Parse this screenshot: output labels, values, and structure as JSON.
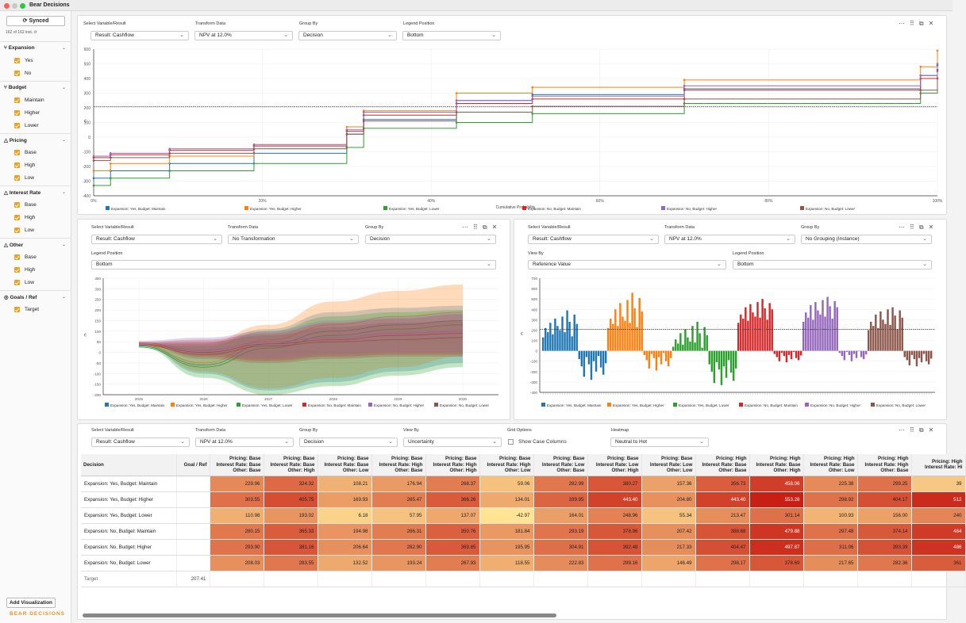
{
  "app": {
    "title": "Bear Decisions",
    "logo": "BEAR DECISIONS"
  },
  "sidebar": {
    "sync_label": "Synced",
    "instances": "162 of 162 inst.",
    "add_viz": "Add Visualization",
    "groups": [
      {
        "name": "Expansion",
        "icon": "branch-icon",
        "options": [
          "Yes",
          "No"
        ]
      },
      {
        "name": "Budget",
        "icon": "branch-icon",
        "options": [
          "Maintain",
          "Higher",
          "Lower"
        ]
      },
      {
        "name": "Pricing",
        "icon": "triangle-icon",
        "options": [
          "Base",
          "High",
          "Low"
        ]
      },
      {
        "name": "Interest Rate",
        "icon": "triangle-icon",
        "options": [
          "Base",
          "High",
          "Low"
        ]
      },
      {
        "name": "Other",
        "icon": "triangle-icon",
        "options": [
          "Base",
          "High",
          "Low"
        ]
      },
      {
        "name": "Goals / Ref",
        "icon": "target-icon",
        "options": [
          "Target"
        ]
      }
    ]
  },
  "colors": {
    "s1": "#1f77b4",
    "s2": "#ff7f0e",
    "s3": "#2ca02c",
    "s4": "#d62728",
    "s5": "#9467bd",
    "s6": "#8c564b",
    "accent": "#f0a020"
  },
  "legend": [
    "Expansion: Yes, Budget: Maintain",
    "Expansion: Yes, Budget: Higher",
    "Expansion: Yes, Budget: Lower",
    "Expansion: No, Budget: Maintain",
    "Expansion: No, Budget: Higher",
    "Expansion: No, Budget: Lower"
  ],
  "panel1": {
    "labels": {
      "variable": "Select Variable/Result",
      "transform": "Transform Data",
      "group": "Group By",
      "legend": "Legend Position"
    },
    "values": {
      "variable": "Result: Cashflow",
      "transform": "NPV at 12.0%",
      "group": "Decision",
      "legend": "Bottom"
    },
    "xlabel": "Cumulative Probability",
    "ylabel": "€"
  },
  "panel2": {
    "labels": {
      "variable": "Select Variable/Result",
      "transform": "Transform Data",
      "group": "Group By",
      "legend": "Legend Position"
    },
    "values": {
      "variable": "Result: Cashflow",
      "transform": "No Transformation",
      "group": "Decision",
      "legend": "Bottom"
    },
    "ylabel": "€"
  },
  "panel3": {
    "labels": {
      "variable": "Select Variable/Result",
      "transform": "Transform Data",
      "group": "Group By",
      "viewby": "View By",
      "legend": "Legend Position"
    },
    "values": {
      "variable": "Result: Cashflow",
      "transform": "NPV at 12.0%",
      "group": "No Grouping (Instance)",
      "viewby": "Reference Value",
      "legend": "Bottom"
    },
    "ylabel": "€"
  },
  "panel4": {
    "labels": {
      "variable": "Select Variable/Result",
      "transform": "Transform Data",
      "group": "Group By",
      "viewby": "View By",
      "grid": "Grid Options",
      "heatmap": "Heatmap"
    },
    "values": {
      "variable": "Result: Cashflow",
      "transform": "NPV at 12.0%",
      "group": "Decision",
      "viewby": "Uncertainty",
      "grid": "Show Case Columns",
      "heatmap": "Neutral to Hot"
    }
  },
  "table": {
    "headers": [
      "Decision",
      "Goal / Ref",
      "Pricing: Base|Interest Rate: Base|Other: Base",
      "Pricing: Base|Interest Rate: Base|Other: High",
      "Pricing: Base|Interest Rate: Base|Other: Low",
      "Pricing: Base|Interest Rate: High|Other: Base",
      "Pricing: Base|Interest Rate: High|Other: High",
      "Pricing: Base|Interest Rate: High|Other: Low",
      "Pricing: Base|Interest Rate: Low|Other: Base",
      "Pricing: Base|Interest Rate: Low|Other: High",
      "Pricing: Base|Interest Rate: Low|Other: Low",
      "Pricing: High|Interest Rate: Base|Other: Base",
      "Pricing: High|Interest Rate: Base|Other: High",
      "Pricing: High|Interest Rate: Base|Other: Low",
      "Pricing: High|Interest Rate: High|Other: Base",
      "Pricing: High|Interest Rate: Hi"
    ],
    "rows": [
      {
        "label": "Expansion: Yes, Budget: Maintain",
        "goal": "",
        "cells": [
          "229.96",
          "324.32",
          "108.21",
          "176.94",
          "268.37",
          "59.06",
          "282.99",
          "380.27",
          "157.36",
          "356.73",
          "458.06",
          "225.38",
          "299.25",
          "39"
        ]
      },
      {
        "label": "Expansion: Yes, Budget: Higher",
        "goal": "",
        "cells": [
          "303.55",
          "405.75",
          "169.93",
          "265.47",
          "366.26",
          "134.01",
          "339.95",
          "443.40",
          "204.80",
          "443.40",
          "553.28",
          "298.92",
          "404.17",
          "512"
        ]
      },
      {
        "label": "Expansion: Yes, Budget: Lower",
        "goal": "",
        "cells": [
          "110.98",
          "193.02",
          "6.18",
          "57.95",
          "137.07",
          "-42.97",
          "164.01",
          "248.96",
          "55.34",
          "213.47",
          "301.14",
          "100.93",
          "156.00",
          "240"
        ]
      },
      {
        "label": "Expansion: No, Budget: Maintain",
        "goal": "",
        "cells": [
          "280.15",
          "365.33",
          "194.98",
          "266.31",
          "350.76",
          "181.84",
          "293.19",
          "378.96",
          "207.42",
          "388.68",
          "479.88",
          "297.48",
          "374.14",
          "464"
        ]
      },
      {
        "label": "Expansion: No, Budget: Higher",
        "goal": "",
        "cells": [
          "293.90",
          "381.16",
          "206.64",
          "282.90",
          "369.85",
          "195.95",
          "304.91",
          "392.48",
          "217.33",
          "404.47",
          "497.87",
          "311.06",
          "393.39",
          "486"
        ]
      },
      {
        "label": "Expansion: No, Budget: Lower",
        "goal": "",
        "cells": [
          "208.03",
          "283.55",
          "132.52",
          "193.24",
          "267.93",
          "118.55",
          "222.83",
          "299.16",
          "146.49",
          "298.17",
          "378.69",
          "217.65",
          "282.36",
          "361"
        ]
      }
    ],
    "target": {
      "label": "Target",
      "value": "207.41"
    }
  },
  "chart_data": [
    {
      "type": "line",
      "title": "",
      "xlabel": "Cumulative Probability",
      "ylabel": "€",
      "xticks": [
        "0%",
        "20%",
        "40%",
        "60%",
        "80%",
        "100%"
      ],
      "yticks": [
        600,
        500,
        400,
        300,
        200,
        100,
        0,
        -100,
        -200,
        -300,
        -400
      ],
      "ylim": [
        -400,
        600
      ],
      "reference": 207,
      "legend": "bottom",
      "series": [
        {
          "name": "Expansion: Yes, Budget: Maintain",
          "x": [
            0,
            0.02,
            0.09,
            0.19,
            0.3,
            0.32,
            0.43,
            0.52,
            0.7,
            0.98,
            1
          ],
          "y": [
            -280,
            -230,
            -180,
            -110,
            20,
            120,
            250,
            290,
            330,
            420,
            490
          ]
        },
        {
          "name": "Expansion: Yes, Budget: Higher",
          "x": [
            0,
            0.02,
            0.09,
            0.19,
            0.3,
            0.32,
            0.43,
            0.52,
            0.7,
            0.98,
            1
          ],
          "y": [
            -230,
            -180,
            -130,
            -60,
            70,
            180,
            300,
            340,
            390,
            480,
            590
          ]
        },
        {
          "name": "Expansion: Yes, Budget: Lower",
          "x": [
            0,
            0.02,
            0.09,
            0.19,
            0.3,
            0.32,
            0.43,
            0.52,
            0.7,
            0.98,
            1
          ],
          "y": [
            -330,
            -280,
            -230,
            -180,
            -70,
            60,
            100,
            160,
            230,
            300,
            450
          ]
        },
        {
          "name": "Expansion: No, Budget: Maintain",
          "x": [
            0,
            0.02,
            0.09,
            0.19,
            0.3,
            0.32,
            0.43,
            0.52,
            0.7,
            0.98,
            1
          ],
          "y": [
            -140,
            -120,
            -90,
            -60,
            40,
            150,
            230,
            260,
            320,
            400,
            460
          ]
        },
        {
          "name": "Expansion: No, Budget: Higher",
          "x": [
            0,
            0.02,
            0.09,
            0.19,
            0.3,
            0.32,
            0.43,
            0.52,
            0.7,
            0.98,
            1
          ],
          "y": [
            -130,
            -110,
            -80,
            -50,
            50,
            170,
            250,
            280,
            350,
            420,
            500
          ]
        },
        {
          "name": "Expansion: No, Budget: Lower",
          "x": [
            0,
            0.02,
            0.09,
            0.19,
            0.3,
            0.32,
            0.43,
            0.52,
            0.7,
            0.98,
            1
          ],
          "y": [
            -160,
            -140,
            -110,
            -80,
            20,
            110,
            170,
            210,
            260,
            320,
            400
          ]
        }
      ]
    },
    {
      "type": "area",
      "title": "",
      "ylabel": "€",
      "xticks": [
        "2025",
        "2026",
        "2027",
        "2028",
        "2029",
        "2030"
      ],
      "yticks": [
        350,
        300,
        250,
        200,
        150,
        100,
        50,
        0,
        -50,
        -100,
        -150,
        -200
      ],
      "ylim": [
        -200,
        350
      ],
      "legend": "bottom",
      "series": [
        {
          "name": "Expansion: Yes, Budget: Maintain",
          "upper": [
            40,
            40,
            110,
            190,
            210,
            220
          ],
          "lower": [
            30,
            -100,
            -180,
            -140,
            -90,
            -50
          ],
          "mid": [
            30,
            -60,
            40,
            100,
            130,
            150
          ]
        },
        {
          "name": "Expansion: Yes, Budget: Higher",
          "upper": [
            45,
            45,
            130,
            240,
            290,
            320
          ],
          "lower": [
            35,
            -90,
            -170,
            -120,
            -70,
            -20
          ],
          "mid": [
            35,
            -50,
            60,
            130,
            170,
            190
          ]
        },
        {
          "name": "Expansion: Yes, Budget: Lower",
          "upper": [
            35,
            30,
            100,
            170,
            190,
            200
          ],
          "lower": [
            25,
            -120,
            -200,
            -160,
            -110,
            -70
          ],
          "mid": [
            25,
            -70,
            20,
            80,
            110,
            130
          ]
        },
        {
          "name": "Expansion: No, Budget: Maintain",
          "upper": [
            50,
            60,
            90,
            140,
            160,
            180
          ],
          "lower": [
            40,
            -20,
            -40,
            -20,
            -10,
            -10
          ],
          "mid": [
            40,
            0,
            40,
            60,
            80,
            90
          ]
        },
        {
          "name": "Expansion: No, Budget: Higher",
          "upper": [
            55,
            70,
            100,
            150,
            170,
            190
          ],
          "lower": [
            45,
            -10,
            -30,
            -10,
            0,
            0
          ],
          "mid": [
            45,
            10,
            50,
            70,
            90,
            100
          ]
        },
        {
          "name": "Expansion: No, Budget: Lower",
          "upper": [
            45,
            50,
            80,
            120,
            140,
            150
          ],
          "lower": [
            35,
            -30,
            -50,
            -30,
            -20,
            -20
          ],
          "mid": [
            35,
            -10,
            30,
            50,
            60,
            70
          ]
        }
      ]
    },
    {
      "type": "bar",
      "title": "",
      "ylabel": "€",
      "yticks": [
        700,
        600,
        500,
        400,
        300,
        200,
        100,
        0,
        -100,
        -200,
        -300,
        -400
      ],
      "ylim": [
        -400,
        700
      ],
      "reference": 207,
      "legend": "bottom",
      "series": [
        {
          "name": "Expansion: Yes, Budget: Maintain",
          "values": [
            130,
            220,
            180,
            270,
            160,
            310,
            240,
            200,
            330,
            180,
            390,
            280,
            140,
            350,
            260,
            -80,
            -150,
            -250,
            -60,
            -130,
            -280,
            -100,
            -200,
            -50,
            -160,
            -230,
            -120
          ]
        },
        {
          "name": "Expansion: Yes, Budget: Higher",
          "values": [
            220,
            310,
            260,
            400,
            240,
            460,
            330,
            290,
            490,
            270,
            560,
            410,
            230,
            510,
            380,
            -40,
            -90,
            -170,
            -30,
            -70,
            -190,
            -60,
            -130,
            -20,
            -100,
            -150,
            -70
          ]
        },
        {
          "name": "Expansion: Yes, Budget: Lower",
          "values": [
            40,
            110,
            70,
            170,
            60,
            210,
            130,
            90,
            240,
            80,
            280,
            170,
            30,
            230,
            150,
            -130,
            -200,
            -310,
            -110,
            -180,
            -330,
            -150,
            -260,
            -90,
            -210,
            -290,
            -170
          ]
        },
        {
          "name": "Expansion: No, Budget: Maintain",
          "values": [
            270,
            350,
            310,
            420,
            290,
            450,
            370,
            330,
            470,
            320,
            500,
            410,
            300,
            460,
            400,
            -30,
            -60,
            -100,
            -20,
            -50,
            -110,
            -40,
            -80,
            -10,
            -70,
            -90,
            -45
          ]
        },
        {
          "name": "Expansion: No, Budget: Higher",
          "values": [
            280,
            370,
            320,
            440,
            300,
            470,
            390,
            350,
            490,
            330,
            520,
            430,
            310,
            480,
            420,
            -20,
            -50,
            -90,
            -10,
            -40,
            -100,
            -30,
            -70,
            -5,
            -60,
            -80,
            -35
          ]
        },
        {
          "name": "Expansion: No, Budget: Lower",
          "values": [
            200,
            280,
            240,
            350,
            220,
            380,
            300,
            260,
            400,
            250,
            420,
            340,
            210,
            390,
            320,
            -60,
            -90,
            -140,
            -40,
            -80,
            -150,
            -70,
            -110,
            -30,
            -100,
            -130,
            -75
          ]
        }
      ]
    }
  ]
}
